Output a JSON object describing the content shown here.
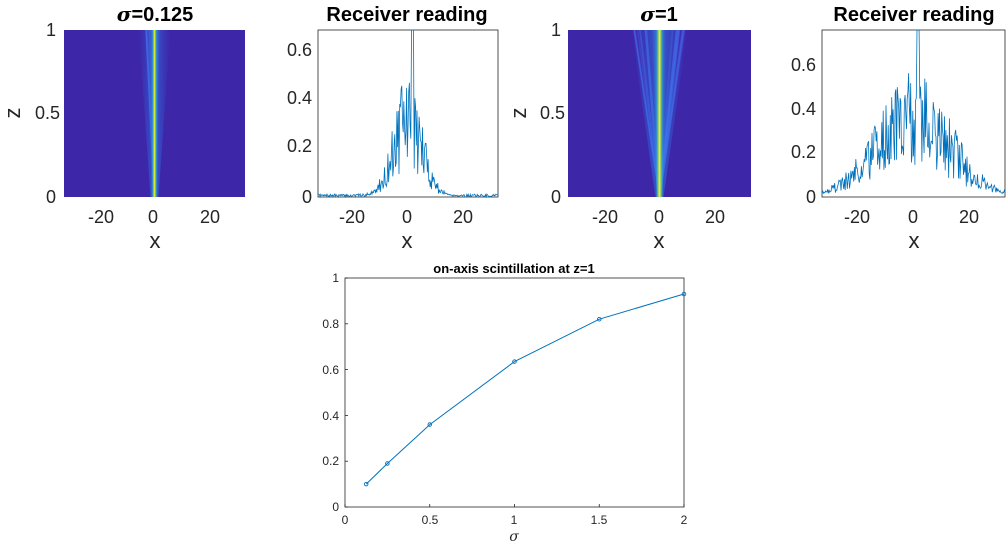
{
  "colors": {
    "series": "#0072BD",
    "heatmap_bg": "#3e26a8",
    "heatmap_mid": "#1fa3d9",
    "heatmap_peak": "#f9fb0e",
    "axis": "#262626"
  },
  "chart_data": [
    {
      "type": "heatmap",
      "title_symbol": "σ",
      "title_value": "=0.125",
      "xlabel": "x",
      "ylabel": "z",
      "xlim": [
        -32,
        32
      ],
      "ylim": [
        0,
        1
      ],
      "xticks": [
        "-20",
        "0",
        "20"
      ],
      "yticks": [
        "0",
        "0.5",
        "1"
      ],
      "beam_width": 0.125
    },
    {
      "type": "line",
      "title": "Receiver reading",
      "xlabel": "x",
      "xlim": [
        -32,
        32
      ],
      "ylim": [
        0,
        0.7
      ],
      "xticks": [
        "-20",
        "0",
        "20"
      ],
      "yticks": [
        "0",
        "0.2",
        "0.4",
        "0.6"
      ],
      "peak": 0.7,
      "spread": 5
    },
    {
      "type": "heatmap",
      "title_symbol": "σ",
      "title_value": "=1",
      "xlabel": "x",
      "ylabel": "z",
      "xlim": [
        -32,
        32
      ],
      "ylim": [
        0,
        1
      ],
      "xticks": [
        "-20",
        "0",
        "20"
      ],
      "yticks": [
        "0",
        "0.5",
        "1"
      ],
      "beam_width": 1
    },
    {
      "type": "line",
      "title": "Receiver reading",
      "xlabel": "x",
      "xlim": [
        -32,
        32
      ],
      "ylim": [
        0,
        0.78
      ],
      "xticks": [
        "-20",
        "0",
        "20"
      ],
      "yticks": [
        "0",
        "0.2",
        "0.4",
        "0.6"
      ],
      "peak": 0.78,
      "spread": 13
    },
    {
      "type": "line",
      "title": "on-axis scintillation at z=1",
      "xlabel": "σ",
      "ylabel": "",
      "xlim": [
        0,
        2
      ],
      "ylim": [
        0,
        1
      ],
      "xticks": [
        "0",
        "0.5",
        "1",
        "1.5",
        "2"
      ],
      "yticks": [
        "0",
        "0.2",
        "0.4",
        "0.6",
        "0.8",
        "1"
      ],
      "x": [
        0.125,
        0.25,
        0.5,
        1,
        1.5,
        2
      ],
      "y": [
        0.1,
        0.19,
        0.36,
        0.635,
        0.82,
        0.93
      ],
      "marker": "circle"
    }
  ]
}
